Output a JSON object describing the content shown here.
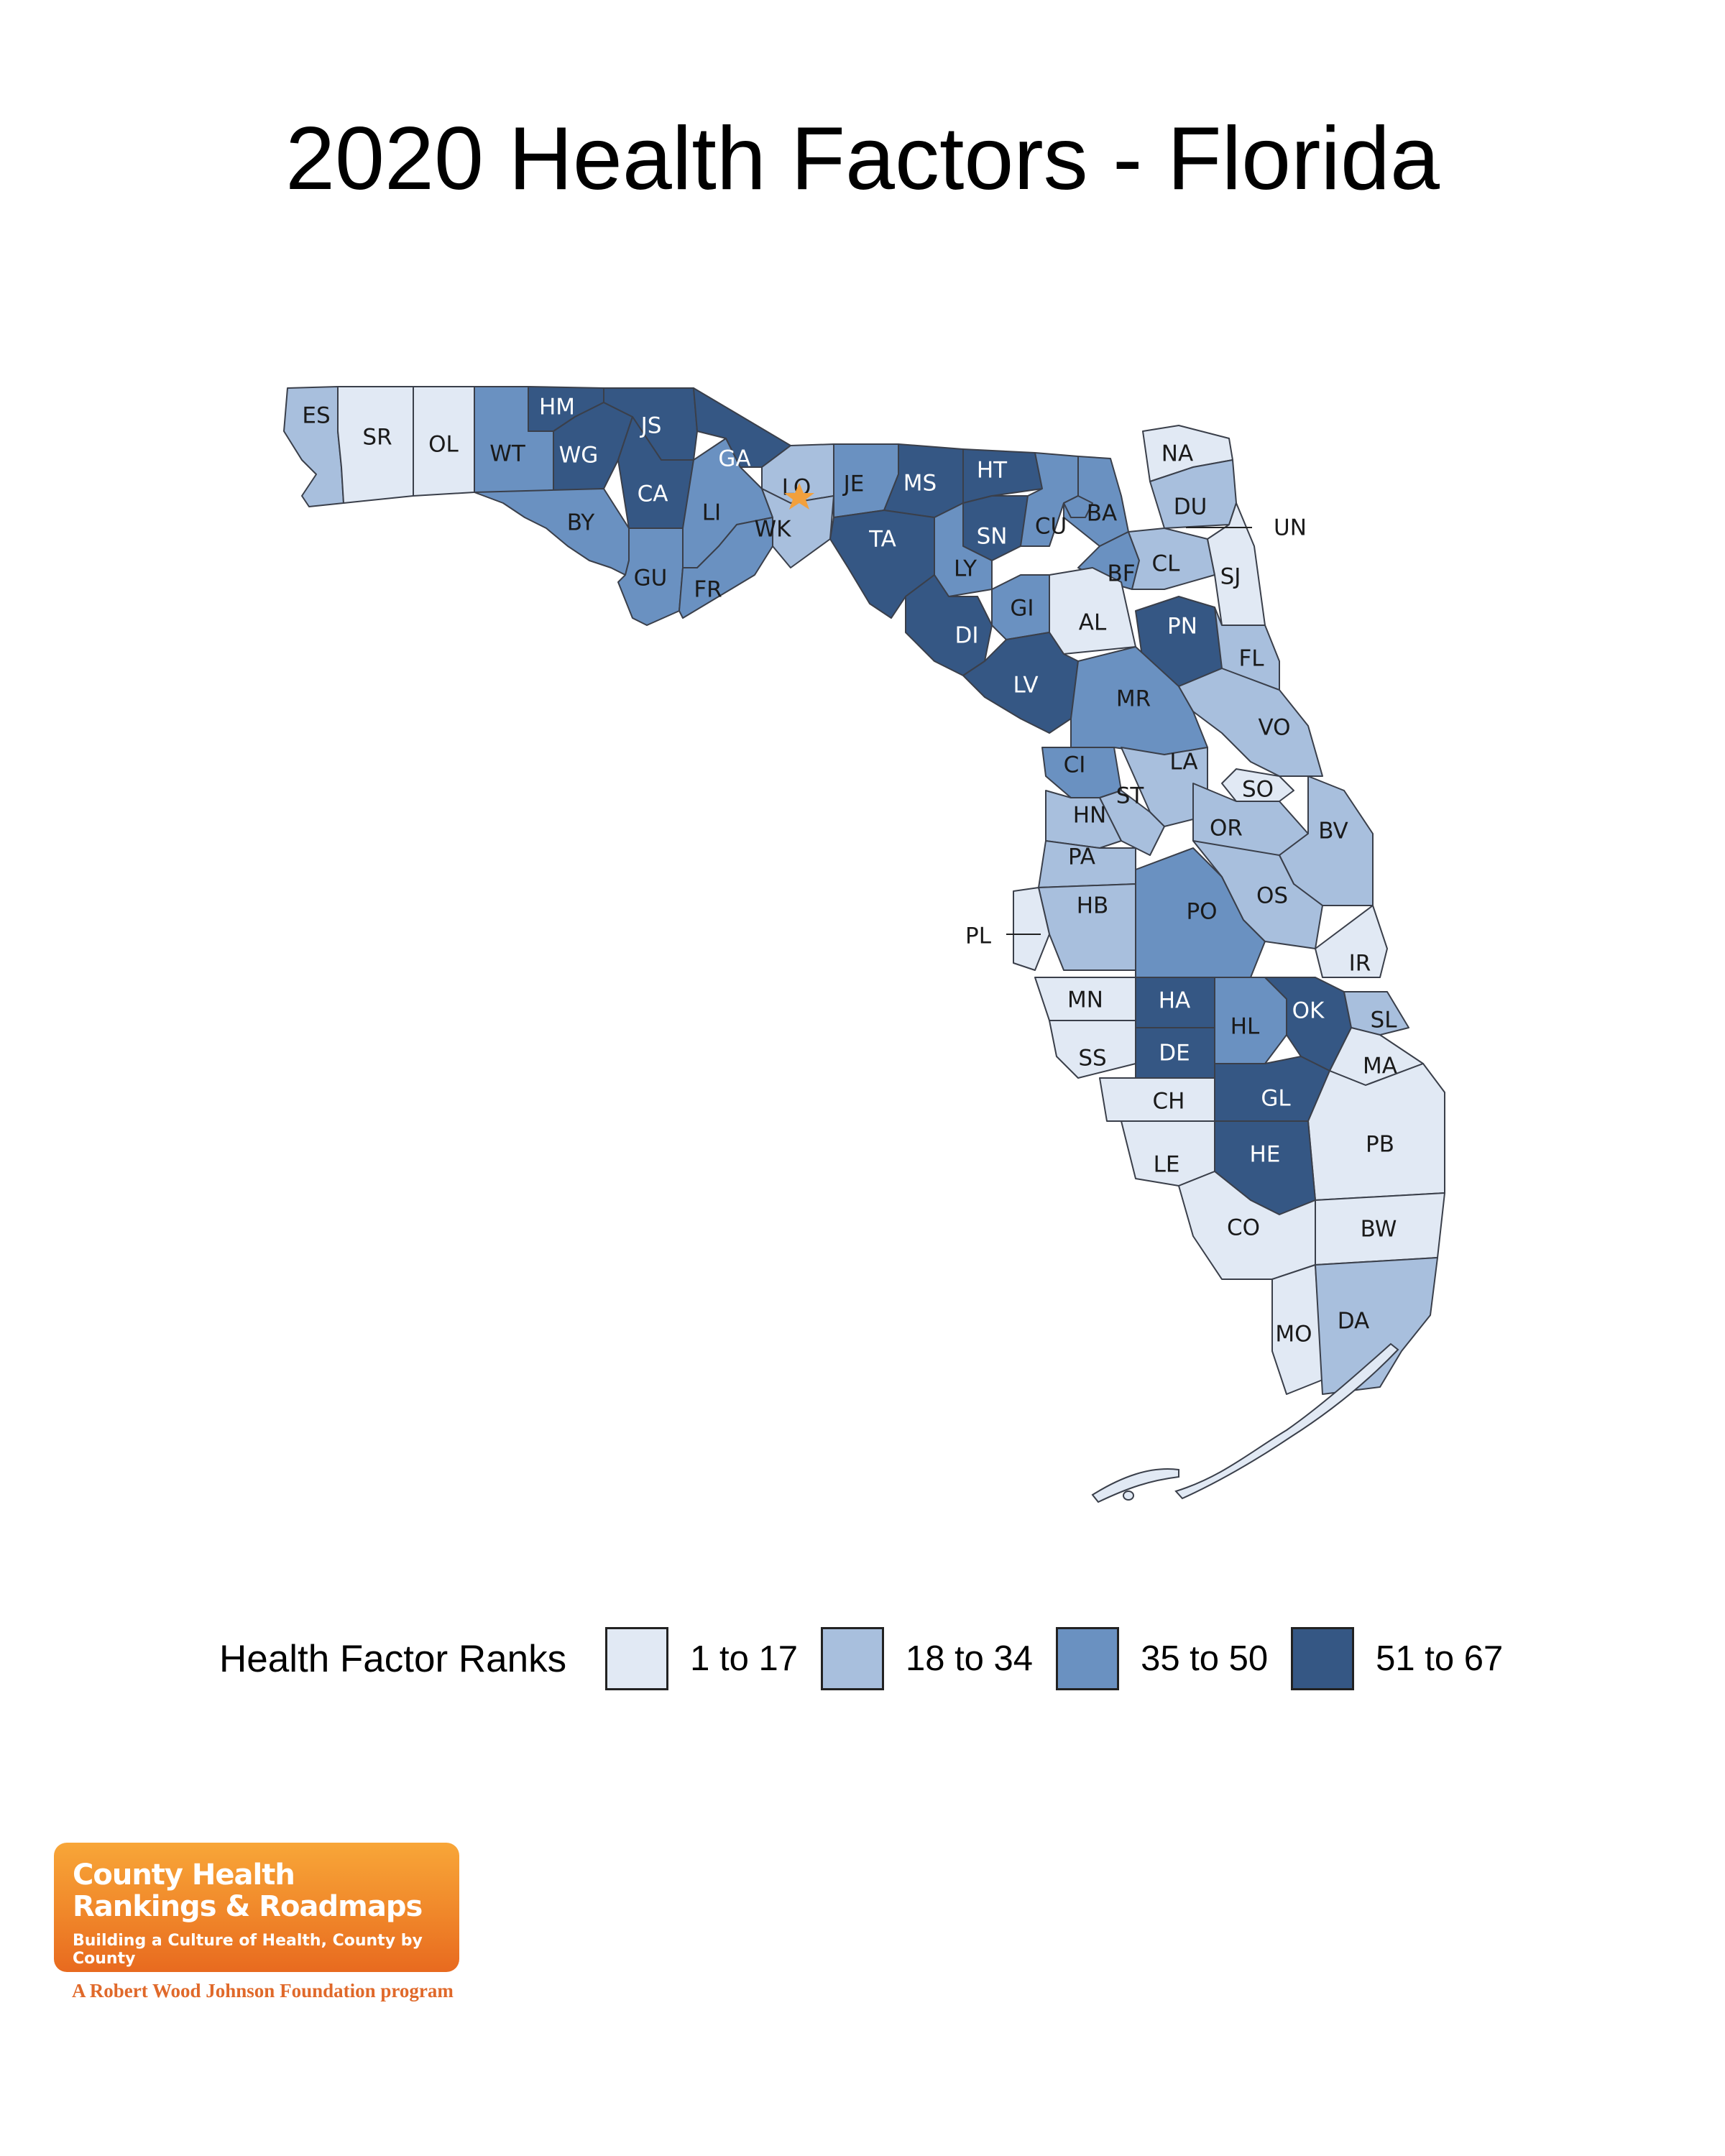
{
  "title": "2020 Health Factors - Florida",
  "legend": {
    "title": "Health Factor Ranks",
    "items": [
      {
        "label": "1 to 17",
        "color": "#e1e9f4"
      },
      {
        "label": "18 to 34",
        "color": "#a8bfdd"
      },
      {
        "label": "35 to 50",
        "color": "#6a91c1"
      },
      {
        "label": "51 to 67",
        "color": "#355784"
      }
    ]
  },
  "counties": [
    {
      "code": "ES",
      "tier": 1
    },
    {
      "code": "SR",
      "tier": 0
    },
    {
      "code": "OL",
      "tier": 0
    },
    {
      "code": "WT",
      "tier": 2
    },
    {
      "code": "HM",
      "tier": 3
    },
    {
      "code": "WG",
      "tier": 3
    },
    {
      "code": "JS",
      "tier": 3
    },
    {
      "code": "CA",
      "tier": 3
    },
    {
      "code": "BY",
      "tier": 2
    },
    {
      "code": "GU",
      "tier": 2
    },
    {
      "code": "LI",
      "tier": 2
    },
    {
      "code": "FR",
      "tier": 2
    },
    {
      "code": "GA",
      "tier": 3
    },
    {
      "code": "LO",
      "tier": 1
    },
    {
      "code": "WK",
      "tier": 1
    },
    {
      "code": "JE",
      "tier": 2
    },
    {
      "code": "MS",
      "tier": 3
    },
    {
      "code": "HT",
      "tier": 3
    },
    {
      "code": "TA",
      "tier": 3
    },
    {
      "code": "SN",
      "tier": 3
    },
    {
      "code": "LY",
      "tier": 2
    },
    {
      "code": "CU",
      "tier": 2
    },
    {
      "code": "BA",
      "tier": 2
    },
    {
      "code": "NA",
      "tier": 0
    },
    {
      "code": "DU",
      "tier": 1
    },
    {
      "code": "BF",
      "tier": 2
    },
    {
      "code": "CL",
      "tier": 1
    },
    {
      "code": "SJ",
      "tier": 0
    },
    {
      "code": "DI",
      "tier": 3
    },
    {
      "code": "GI",
      "tier": 2
    },
    {
      "code": "AL",
      "tier": 0
    },
    {
      "code": "PN",
      "tier": 3
    },
    {
      "code": "FL",
      "tier": 1
    },
    {
      "code": "LV",
      "tier": 3
    },
    {
      "code": "MR",
      "tier": 2
    },
    {
      "code": "VO",
      "tier": 1
    },
    {
      "code": "CI",
      "tier": 2
    },
    {
      "code": "LA",
      "tier": 1
    },
    {
      "code": "ST",
      "tier": 1
    },
    {
      "code": "SO",
      "tier": 0
    },
    {
      "code": "HN",
      "tier": 1
    },
    {
      "code": "OR",
      "tier": 1
    },
    {
      "code": "BV",
      "tier": 1
    },
    {
      "code": "PA",
      "tier": 1
    },
    {
      "code": "HB",
      "tier": 1
    },
    {
      "code": "PO",
      "tier": 2
    },
    {
      "code": "OS",
      "tier": 1
    },
    {
      "code": "PL",
      "tier": 0
    },
    {
      "code": "IR",
      "tier": 0
    },
    {
      "code": "MN",
      "tier": 0
    },
    {
      "code": "HA",
      "tier": 3
    },
    {
      "code": "HL",
      "tier": 2
    },
    {
      "code": "OK",
      "tier": 3
    },
    {
      "code": "SL",
      "tier": 1
    },
    {
      "code": "SS",
      "tier": 0
    },
    {
      "code": "DE",
      "tier": 3
    },
    {
      "code": "MA",
      "tier": 0
    },
    {
      "code": "CH",
      "tier": 0
    },
    {
      "code": "GL",
      "tier": 3
    },
    {
      "code": "PB",
      "tier": 0
    },
    {
      "code": "LE",
      "tier": 0
    },
    {
      "code": "HE",
      "tier": 3
    },
    {
      "code": "CO",
      "tier": 0
    },
    {
      "code": "BW",
      "tier": 0
    },
    {
      "code": "MO",
      "tier": 0
    },
    {
      "code": "DA",
      "tier": 1
    },
    {
      "code": "UN",
      "tier": 2
    }
  ],
  "logo": {
    "line1": "County Health",
    "line2": "Rankings & Roadmaps",
    "tagline": "Building a Culture of Health, County by County",
    "footer": "A Robert Wood Johnson Foundation program"
  }
}
